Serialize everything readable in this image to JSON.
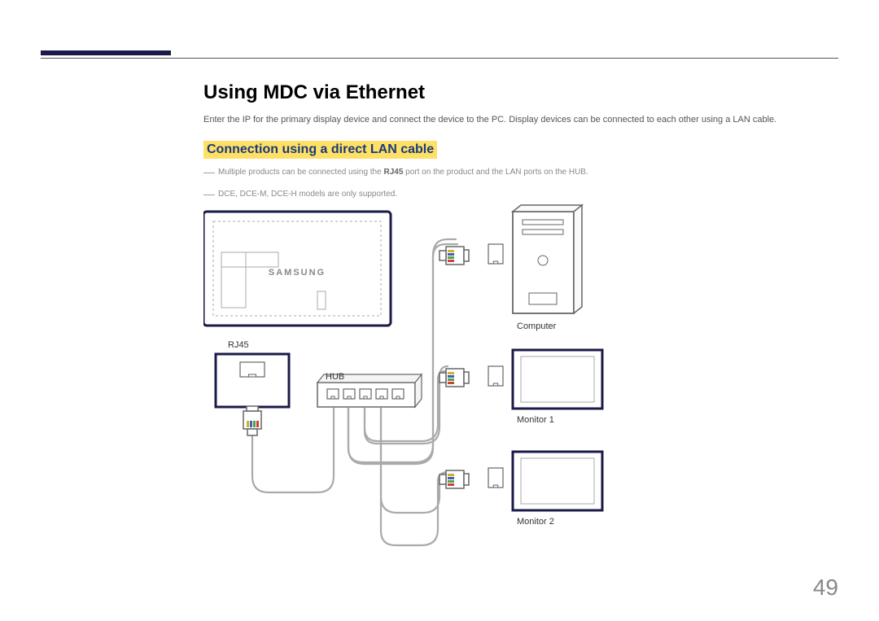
{
  "page": {
    "title": "Using MDC via Ethernet",
    "description": "Enter the IP for the primary display device and connect the device to the PC. Display devices can be connected to each other using a LAN cable.",
    "subtitle": "Connection using a direct LAN cable",
    "note1_prefix": "Multiple products can be connected using the ",
    "note1_bold": "RJ45",
    "note1_suffix": " port on the product and the LAN ports on the HUB.",
    "note2": "DCE, DCE-M, DCE-H models are only supported.",
    "page_number": "49"
  },
  "diagram": {
    "labels": {
      "rj45": "RJ45",
      "hub": "HUB",
      "computer": "Computer",
      "monitor1": "Monitor 1",
      "monitor2": "Monitor 2",
      "brand": "SAMSUNG"
    },
    "colors": {
      "frame_dark": "#1a1a4a",
      "line": "#666666",
      "light_line": "#aaaaaa",
      "wire_r": "#d04030",
      "wire_g": "#50a050",
      "wire_b": "#4060b0",
      "wire_y": "#d0b030",
      "bg": "#ffffff"
    },
    "stroke_main": 3,
    "stroke_thin": 1.5,
    "cable_width": 2.2
  }
}
